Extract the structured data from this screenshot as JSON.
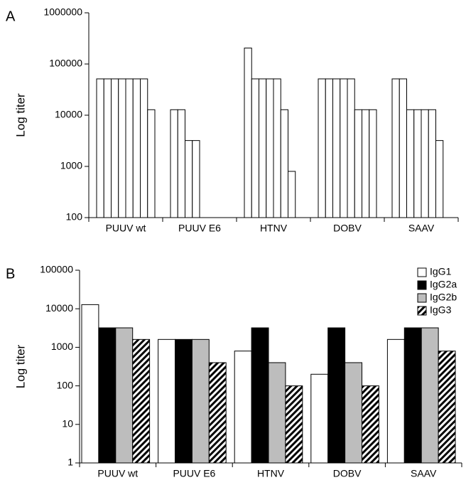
{
  "chart_data": [
    {
      "type": "bar",
      "panel": "A",
      "ylabel": "Log titer",
      "log_scale": true,
      "categories": [
        "PUUV wt",
        "PUUV E6",
        "HTNV",
        "DOBV",
        "SAAV"
      ],
      "values": [
        [
          51200,
          51200,
          51200,
          51200,
          51200,
          51200,
          51200,
          12800
        ],
        [
          12800,
          12800,
          3200,
          3200
        ],
        [
          204800,
          51200,
          51200,
          51200,
          51200,
          12800,
          800
        ],
        [
          51200,
          51200,
          51200,
          51200,
          51200,
          12800,
          12800,
          12800
        ],
        [
          51200,
          51200,
          12800,
          12800,
          12800,
          12800,
          3200
        ]
      ],
      "color": "#ffffff",
      "ylim": [
        100,
        1000000
      ],
      "yticks": [
        100,
        1000,
        10000,
        100000,
        1000000
      ]
    },
    {
      "type": "grouped_bar",
      "panel": "B",
      "ylabel": "Log titer",
      "log_scale": true,
      "categories": [
        "PUUV wt",
        "PUUV E6",
        "HTNV",
        "DOBV",
        "SAAV"
      ],
      "series": [
        {
          "name": "IgG1",
          "color": "#ffffff",
          "values": [
            12800,
            1600,
            800,
            200,
            1600
          ]
        },
        {
          "name": "IgG2a",
          "color": "#000000",
          "values": [
            3200,
            1600,
            3200,
            3200,
            3200
          ]
        },
        {
          "name": "IgG2b",
          "color": "#bdbdbd",
          "values": [
            3200,
            1600,
            400,
            400,
            3200
          ]
        },
        {
          "name": "IgG3",
          "color": "#000000",
          "hatch": true,
          "values": [
            1600,
            400,
            100,
            100,
            800
          ]
        }
      ],
      "legend": "upper right",
      "ylim": [
        1,
        100000
      ],
      "yticks": [
        1,
        10,
        100,
        1000,
        10000,
        100000
      ]
    }
  ]
}
